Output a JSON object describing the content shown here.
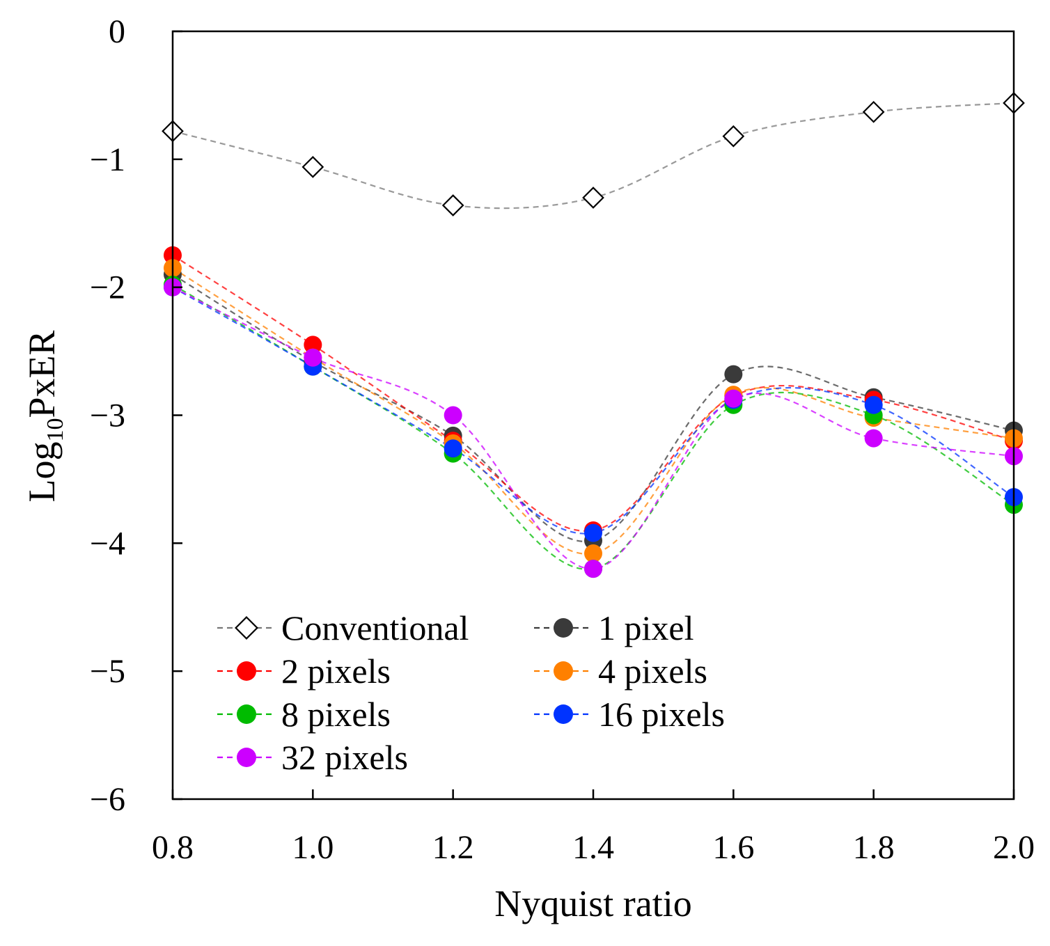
{
  "chart_data": {
    "type": "line",
    "title": "",
    "xlabel": "Nyquist ratio",
    "ylabel": "Log10PxER",
    "ylabel_parts": {
      "main": "Log",
      "sub": "10",
      "rest": "PxER"
    },
    "xlim": [
      0.8,
      2.0
    ],
    "ylim": [
      -6,
      0
    ],
    "x": [
      0.8,
      1.0,
      1.2,
      1.4,
      1.6,
      1.8,
      2.0
    ],
    "x_tick_labels": [
      "0.8",
      "1.0",
      "1.2",
      "1.4",
      "1.6",
      "1.8",
      "2.0"
    ],
    "y_ticks": [
      0,
      -1,
      -2,
      -3,
      -4,
      -5,
      -6
    ],
    "y_tick_labels": [
      "0",
      "−1",
      "−2",
      "−3",
      "−4",
      "−5",
      "−6"
    ],
    "grid": false,
    "legend_position": "bottom-left",
    "series": [
      {
        "name": "Conventional",
        "color": "#777777",
        "marker": "diamond",
        "values": [
          -0.78,
          -1.06,
          -1.36,
          -1.3,
          -0.82,
          -0.63,
          -0.56
        ]
      },
      {
        "name": "1 pixel",
        "color": "#3a3a3a",
        "marker": "circle",
        "values": [
          -1.9,
          -2.58,
          -3.16,
          -3.98,
          -2.68,
          -2.86,
          -3.12
        ]
      },
      {
        "name": "2 pixels",
        "color": "#ff0000",
        "marker": "circle",
        "values": [
          -1.75,
          -2.45,
          -3.2,
          -3.9,
          -2.85,
          -2.88,
          -3.2
        ]
      },
      {
        "name": "4 pixels",
        "color": "#ff8000",
        "marker": "circle",
        "values": [
          -1.85,
          -2.55,
          -3.22,
          -4.08,
          -2.84,
          -3.02,
          -3.18
        ]
      },
      {
        "name": "8 pixels",
        "color": "#00bb00",
        "marker": "circle",
        "values": [
          -1.98,
          -2.62,
          -3.3,
          -4.2,
          -2.92,
          -3.0,
          -3.7
        ]
      },
      {
        "name": "16 pixels",
        "color": "#0033ff",
        "marker": "circle",
        "values": [
          -2.0,
          -2.62,
          -3.26,
          -3.92,
          -2.88,
          -2.92,
          -3.64
        ]
      },
      {
        "name": "32 pixels",
        "color": "#cc00ff",
        "marker": "circle",
        "values": [
          -2.0,
          -2.55,
          -3.0,
          -4.2,
          -2.87,
          -3.18,
          -3.32
        ]
      }
    ]
  }
}
